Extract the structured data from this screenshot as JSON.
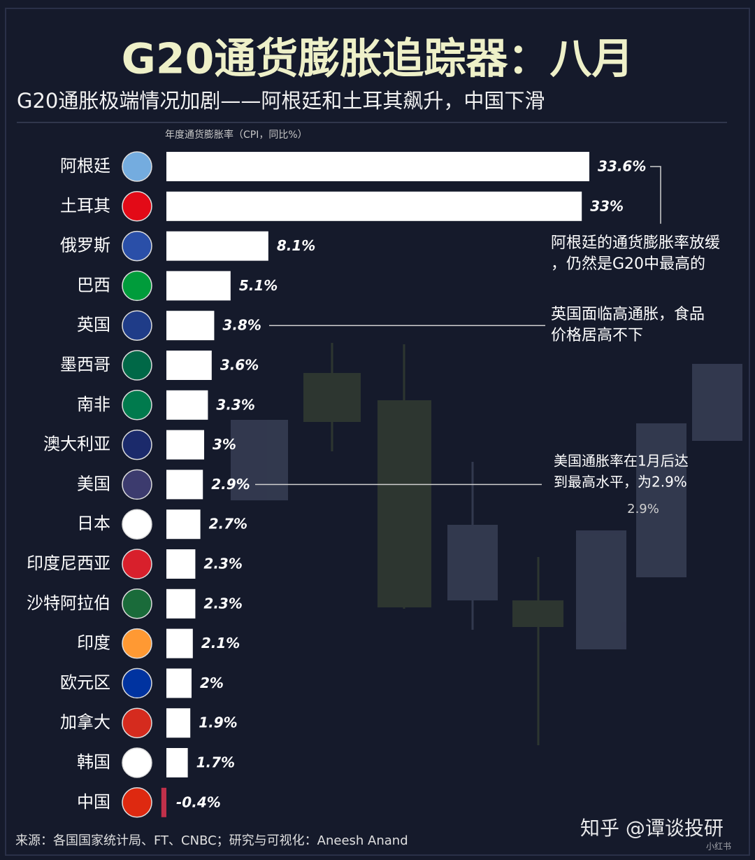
{
  "chart_data": {
    "type": "hbar",
    "title": "G20通货膨胀追踪器：八月",
    "subtitle": "G20通胀极端情况加剧——阿根廷和土耳其飙升，中国下滑",
    "axis_label": "年度通货膨胀率（CPI，同比%）",
    "categories": [
      "阿根廷",
      "土耳其",
      "俄罗斯",
      "巴西",
      "英国",
      "墨西哥",
      "南非",
      "澳大利亚",
      "美国",
      "日本",
      "印度尼西亚",
      "沙特阿拉伯",
      "印度",
      "欧元区",
      "加拿大",
      "韩国",
      "中国"
    ],
    "values": [
      33.6,
      33,
      8.1,
      5.1,
      3.8,
      3.6,
      3.3,
      3,
      2.9,
      2.7,
      2.3,
      2.3,
      2.1,
      2,
      1.9,
      1.7,
      -0.4
    ],
    "value_labels": [
      "33.6%",
      "33%",
      "8.1%",
      "5.1%",
      "3.8%",
      "3.6%",
      "3.3%",
      "3%",
      "2.9%",
      "2.7%",
      "2.3%",
      "2.3%",
      "2.1%",
      "2%",
      "1.9%",
      "1.7%",
      "-0.4%"
    ],
    "color": "#ffffff",
    "negative_color": "#c0304a",
    "annotations": [
      {
        "lines": [
          "阿根廷的通货膨胀率放缓",
          "，仍然是G20中最高的"
        ]
      },
      {
        "lines": [
          "英国面临高通胀，食品",
          "价格居高不下"
        ]
      },
      {
        "lines": [
          "美国通胀率在1月后达",
          "到最高水平，为2.9%"
        ],
        "note": "2.9%"
      }
    ],
    "source": "来源：各国国家统计局、FT、CNBC；研究与可视化：Aneesh Anand",
    "watermarks": [
      "知乎 @谭谈投研",
      "小红书"
    ]
  }
}
